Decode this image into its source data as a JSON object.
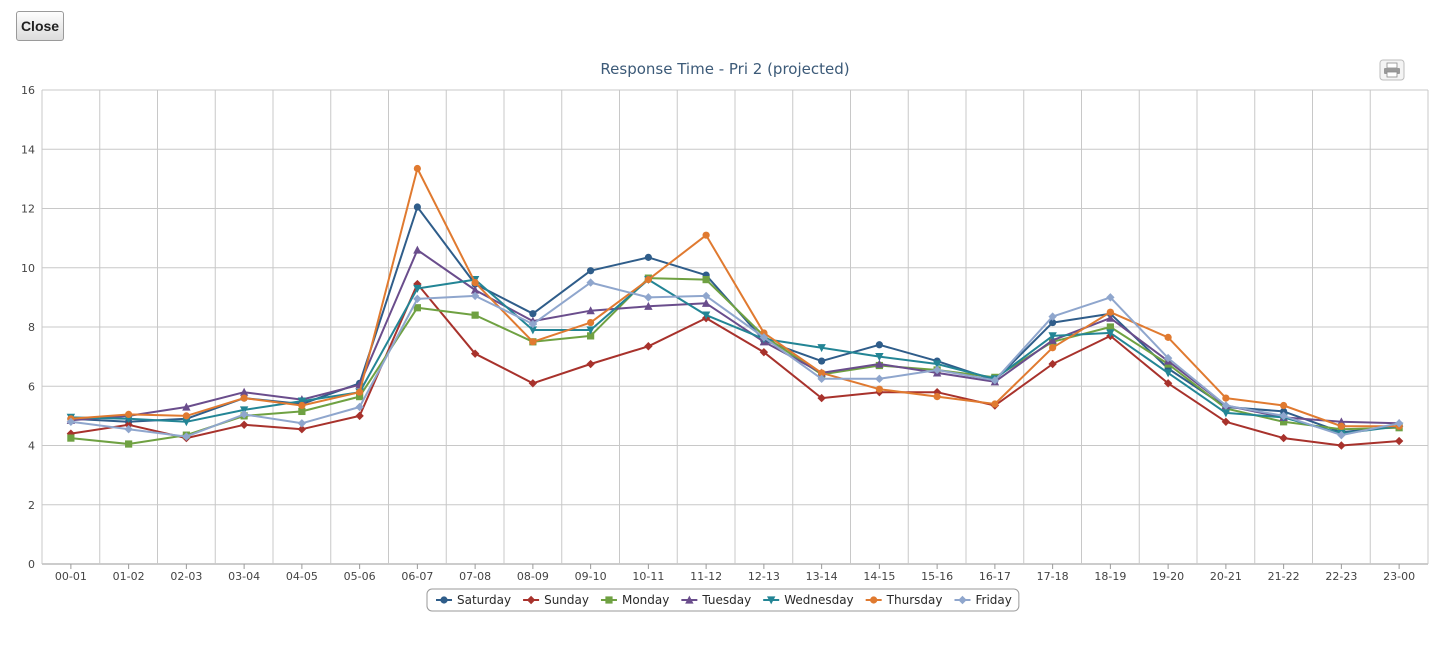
{
  "toolbar": {
    "close_label": "Close"
  },
  "print_icon": "printer-icon",
  "chart_data": {
    "type": "line",
    "title": "Response Time - Pri 2 (projected)",
    "xlabel": "",
    "ylabel": "",
    "ylim": [
      0,
      16
    ],
    "yticks": [
      0,
      2,
      4,
      6,
      8,
      10,
      12,
      14,
      16
    ],
    "grid": true,
    "legend_position": "bottom-center",
    "categories": [
      "00-01",
      "01-02",
      "02-03",
      "03-04",
      "04-05",
      "05-06",
      "06-07",
      "07-08",
      "08-09",
      "09-10",
      "10-11",
      "11-12",
      "12-13",
      "13-14",
      "14-15",
      "15-16",
      "16-17",
      "17-18",
      "18-19",
      "19-20",
      "20-21",
      "21-22",
      "22-23",
      "23-00"
    ],
    "series": [
      {
        "name": "Saturday",
        "color": "#2f5d8a",
        "marker": "circle",
        "values": [
          4.9,
          4.8,
          4.9,
          5.6,
          5.4,
          6.1,
          12.05,
          9.45,
          8.45,
          9.9,
          10.35,
          9.75,
          7.55,
          6.85,
          7.4,
          6.85,
          6.2,
          8.15,
          8.45,
          6.6,
          5.3,
          5.15,
          4.45,
          4.65
        ]
      },
      {
        "name": "Sunday",
        "color": "#a8322c",
        "marker": "diamond",
        "values": [
          4.4,
          4.7,
          4.25,
          4.7,
          4.55,
          5.0,
          9.45,
          7.1,
          6.1,
          6.75,
          7.35,
          8.3,
          7.15,
          5.6,
          5.8,
          5.8,
          5.35,
          6.75,
          7.7,
          6.1,
          4.8,
          4.25,
          4.0,
          4.15
        ]
      },
      {
        "name": "Monday",
        "color": "#6fa142",
        "marker": "square",
        "values": [
          4.25,
          4.05,
          4.35,
          5.0,
          5.15,
          5.65,
          8.65,
          8.4,
          7.5,
          7.7,
          9.65,
          9.6,
          7.7,
          6.4,
          6.7,
          6.55,
          6.3,
          7.5,
          8.0,
          6.75,
          5.25,
          4.8,
          4.55,
          4.6
        ]
      },
      {
        "name": "Tuesday",
        "color": "#6a4d8c",
        "marker": "triangle",
        "values": [
          4.85,
          5.0,
          5.3,
          5.8,
          5.55,
          6.05,
          10.6,
          9.25,
          8.2,
          8.55,
          8.7,
          8.8,
          7.5,
          6.45,
          6.75,
          6.45,
          6.15,
          7.55,
          8.3,
          6.85,
          5.35,
          4.95,
          4.8,
          4.75
        ]
      },
      {
        "name": "Wednesday",
        "color": "#238595",
        "marker": "triangle-down",
        "values": [
          4.95,
          4.9,
          4.8,
          5.2,
          5.5,
          5.8,
          9.3,
          9.6,
          7.9,
          7.9,
          9.6,
          8.4,
          7.6,
          7.3,
          7.0,
          6.75,
          6.25,
          7.7,
          7.8,
          6.45,
          5.1,
          4.95,
          4.4,
          4.65
        ]
      },
      {
        "name": "Thursday",
        "color": "#e07a30",
        "marker": "circle",
        "values": [
          4.9,
          5.05,
          5.0,
          5.6,
          5.35,
          5.8,
          13.35,
          9.5,
          7.5,
          8.15,
          9.6,
          11.1,
          7.8,
          6.45,
          5.9,
          5.65,
          5.4,
          7.3,
          8.5,
          7.65,
          5.6,
          5.35,
          4.65,
          4.65
        ]
      },
      {
        "name": "Friday",
        "color": "#8fa6cd",
        "marker": "diamond",
        "values": [
          4.8,
          4.55,
          4.3,
          5.05,
          4.75,
          5.3,
          8.95,
          9.05,
          8.1,
          9.5,
          9.0,
          9.05,
          7.65,
          6.25,
          6.25,
          6.55,
          6.2,
          8.35,
          9.0,
          6.95,
          5.35,
          5.0,
          4.35,
          4.75
        ]
      }
    ]
  }
}
